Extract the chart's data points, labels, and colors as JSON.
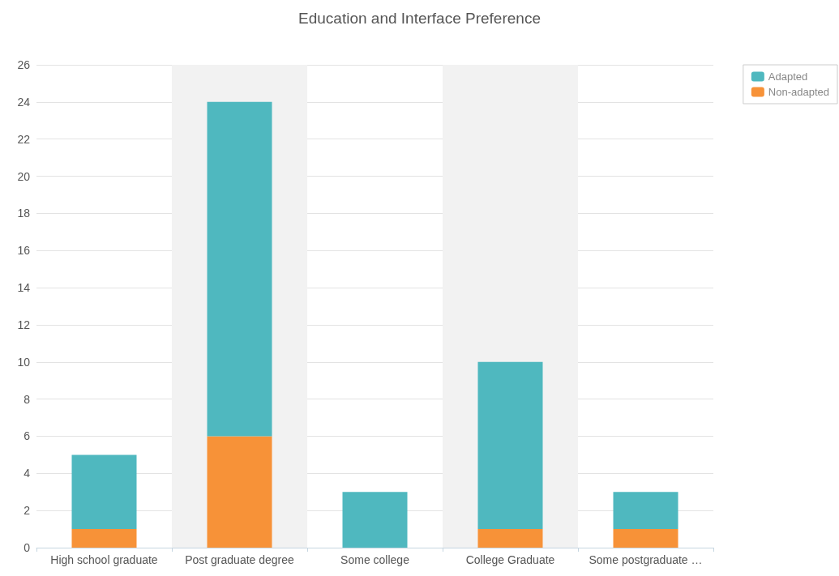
{
  "chart_data": {
    "type": "bar",
    "title": "Education and Interface Preference",
    "categories": [
      "High school graduate",
      "Post graduate degree",
      "Some college",
      "College Graduate",
      "Some postgraduate …"
    ],
    "series": [
      {
        "name": "Non-adapted",
        "color": "#f79238",
        "values": [
          1,
          6,
          0,
          1,
          1
        ]
      },
      {
        "name": "Adapted",
        "color": "#4fb8bf",
        "values": [
          4,
          18,
          3,
          9,
          2
        ]
      }
    ],
    "stacked": true,
    "ylim": [
      0,
      26
    ],
    "yticks": [
      0,
      2,
      4,
      6,
      8,
      10,
      12,
      14,
      16,
      18,
      20,
      22,
      24,
      26
    ],
    "grid": "y",
    "legend": "top right"
  }
}
